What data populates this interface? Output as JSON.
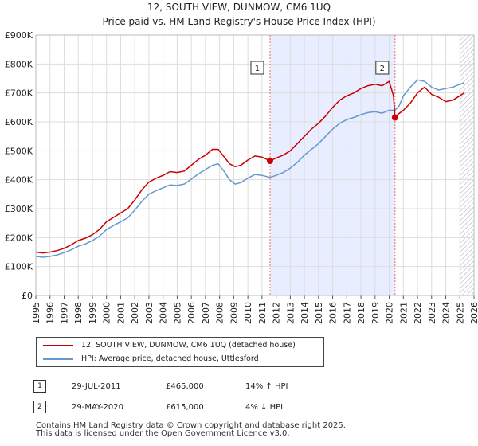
{
  "title_line1": "12, SOUTH VIEW, DUNMOW, CM6 1UQ",
  "title_line2": "Price paid vs. HM Land Registry's House Price Index (HPI)",
  "colors": {
    "property": "#cc0000",
    "hpi": "#6699cc",
    "shade": "#e8eeff",
    "vline": "#ee6666"
  },
  "chart_data": {
    "type": "line",
    "title": "Price paid vs. HM Land Registry's House Price Index (HPI)",
    "xlabel": "",
    "ylabel": "",
    "xlim": [
      1995,
      2026
    ],
    "ylim": [
      0,
      900000
    ],
    "y_ticks": [
      {
        "value": 0,
        "label": "£0"
      },
      {
        "value": 100000,
        "label": "£100K"
      },
      {
        "value": 200000,
        "label": "£200K"
      },
      {
        "value": 300000,
        "label": "£300K"
      },
      {
        "value": 400000,
        "label": "£400K"
      },
      {
        "value": 500000,
        "label": "£500K"
      },
      {
        "value": 600000,
        "label": "£600K"
      },
      {
        "value": 700000,
        "label": "£700K"
      },
      {
        "value": 800000,
        "label": "£800K"
      },
      {
        "value": 900000,
        "label": "£900K"
      }
    ],
    "x_ticks": [
      "1995",
      "1996",
      "1997",
      "1998",
      "1999",
      "2000",
      "2001",
      "2002",
      "2003",
      "2004",
      "2005",
      "2006",
      "2007",
      "2008",
      "2009",
      "2010",
      "2011",
      "2012",
      "2013",
      "2014",
      "2015",
      "2016",
      "2017",
      "2018",
      "2019",
      "2020",
      "2021",
      "2022",
      "2023",
      "2024",
      "2025",
      "2026"
    ],
    "grid": true,
    "shaded_period": [
      2011.57,
      2020.41
    ],
    "forecast_hatch_from": 2025.0,
    "series": [
      {
        "name": "12, SOUTH VIEW, DUNMOW, CM6 1UQ (detached house)",
        "x": [
          1995,
          1995.5,
          1996,
          1996.5,
          1997,
          1997.5,
          1998,
          1998.5,
          1999,
          1999.5,
          2000,
          2000.5,
          2001,
          2001.5,
          2002,
          2002.5,
          2003,
          2003.5,
          2004,
          2004.5,
          2005,
          2005.5,
          2006,
          2006.5,
          2007,
          2007.5,
          2007.9,
          2008.3,
          2008.7,
          2009.1,
          2009.5,
          2010,
          2010.5,
          2011,
          2011.57,
          2012,
          2012.5,
          2013,
          2013.5,
          2014,
          2014.5,
          2015,
          2015.5,
          2016,
          2016.5,
          2017,
          2017.5,
          2018,
          2018.5,
          2019,
          2019.5,
          2020,
          2020.3,
          2020.41,
          2020.6,
          2021,
          2021.5,
          2022,
          2022.5,
          2023,
          2023.5,
          2024,
          2024.5,
          2025,
          2025.3
        ],
        "values": [
          150000,
          147000,
          150000,
          155000,
          163000,
          175000,
          190000,
          198000,
          210000,
          228000,
          255000,
          270000,
          285000,
          300000,
          330000,
          365000,
          392000,
          405000,
          415000,
          428000,
          425000,
          430000,
          450000,
          470000,
          485000,
          505000,
          505000,
          480000,
          455000,
          445000,
          450000,
          468000,
          482000,
          478000,
          465000,
          475000,
          485000,
          500000,
          525000,
          550000,
          575000,
          595000,
          620000,
          650000,
          675000,
          690000,
          700000,
          715000,
          725000,
          730000,
          725000,
          740000,
          690000,
          615000,
          625000,
          640000,
          665000,
          700000,
          720000,
          695000,
          685000,
          670000,
          675000,
          690000,
          700000
        ]
      },
      {
        "name": "HPI: Average price, detached house, Uttlesford",
        "x": [
          1995,
          1995.5,
          1996,
          1996.5,
          1997,
          1997.5,
          1998,
          1998.5,
          1999,
          1999.5,
          2000,
          2000.5,
          2001,
          2001.5,
          2002,
          2002.5,
          2003,
          2003.5,
          2004,
          2004.5,
          2005,
          2005.5,
          2006,
          2006.5,
          2007,
          2007.5,
          2007.9,
          2008.3,
          2008.7,
          2009.1,
          2009.5,
          2010,
          2010.5,
          2011,
          2011.57,
          2012,
          2012.5,
          2013,
          2013.5,
          2014,
          2014.5,
          2015,
          2015.5,
          2016,
          2016.5,
          2017,
          2017.5,
          2018,
          2018.5,
          2019,
          2019.5,
          2020,
          2020.41,
          2020.7,
          2021,
          2021.5,
          2022,
          2022.5,
          2023,
          2023.5,
          2024,
          2024.5,
          2025,
          2025.3
        ],
        "values": [
          135000,
          132000,
          135000,
          140000,
          148000,
          158000,
          170000,
          178000,
          190000,
          205000,
          228000,
          242000,
          255000,
          268000,
          295000,
          325000,
          350000,
          362000,
          372000,
          382000,
          380000,
          385000,
          402000,
          420000,
          435000,
          450000,
          455000,
          430000,
          400000,
          385000,
          390000,
          405000,
          418000,
          415000,
          408000,
          415000,
          425000,
          440000,
          460000,
          485000,
          505000,
          525000,
          550000,
          575000,
          595000,
          608000,
          615000,
          625000,
          632000,
          635000,
          630000,
          640000,
          640000,
          655000,
          690000,
          720000,
          745000,
          740000,
          720000,
          710000,
          715000,
          720000,
          730000,
          735000
        ]
      }
    ],
    "markers": [
      {
        "label": "1",
        "x": 2011.57,
        "y": 465000
      },
      {
        "label": "2",
        "x": 2020.41,
        "y": 615000
      }
    ]
  },
  "legend": {
    "property": "12, SOUTH VIEW, DUNMOW, CM6 1UQ (detached house)",
    "hpi": "HPI: Average price, detached house, Uttlesford"
  },
  "sales": [
    {
      "num": "1",
      "date": "29-JUL-2011",
      "price": "£465,000",
      "hpi": "14% ↑ HPI"
    },
    {
      "num": "2",
      "date": "29-MAY-2020",
      "price": "£615,000",
      "hpi": "4% ↓ HPI"
    }
  ],
  "footer_line1": "Contains HM Land Registry data © Crown copyright and database right 2025.",
  "footer_line2": "This data is licensed under the Open Government Licence v3.0."
}
